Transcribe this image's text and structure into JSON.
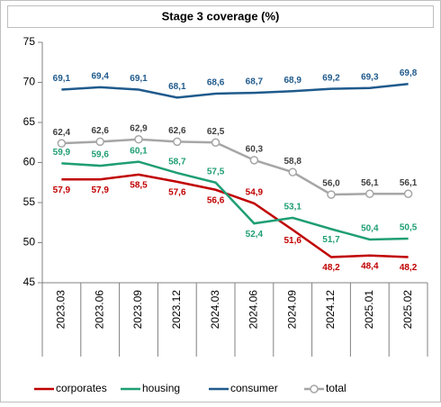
{
  "chart_data": {
    "type": "line",
    "title": "Stage 3 coverage (%)",
    "categories": [
      "2023.03",
      "2023.06",
      "2023.09",
      "2023.12",
      "2024.03",
      "2024.06",
      "2024.09",
      "2024.12",
      "2025.01",
      "2025.02"
    ],
    "ylim": [
      45,
      75
    ],
    "yticks": [
      45,
      50,
      55,
      60,
      65,
      70,
      75
    ],
    "legend": "bottom",
    "series": [
      {
        "name": "corporates",
        "color": "#c00000",
        "values": [
          57.9,
          57.9,
          58.5,
          57.6,
          56.6,
          54.9,
          51.6,
          48.2,
          48.4,
          48.2
        ],
        "value_labels": [
          "57,9",
          "57,9",
          "58,5",
          "57,6",
          "56,6",
          "54,9",
          "51,6",
          "48,2",
          "48,4",
          "48,2"
        ]
      },
      {
        "name": "housing",
        "color": "#1f9e74",
        "values": [
          59.9,
          59.6,
          60.1,
          58.7,
          57.5,
          52.4,
          53.1,
          51.7,
          50.4,
          50.5
        ],
        "value_labels": [
          "59,9",
          "59,6",
          "60,1",
          "58,7",
          "57,5",
          "52,4",
          "53,1",
          "51,7",
          "50,4",
          "50,5"
        ]
      },
      {
        "name": "consumer",
        "color": "#1f5a8c",
        "values": [
          69.1,
          69.4,
          69.1,
          68.1,
          68.6,
          68.7,
          68.9,
          69.2,
          69.3,
          69.8
        ],
        "value_labels": [
          "69,1",
          "69,4",
          "69,1",
          "68,1",
          "68,6",
          "68,7",
          "68,9",
          "69,2",
          "69,3",
          "69,8"
        ]
      },
      {
        "name": "total",
        "color": "#a6a6a6",
        "marker": "circle",
        "values": [
          62.4,
          62.6,
          62.9,
          62.6,
          62.5,
          60.3,
          58.8,
          56.0,
          56.1,
          56.1
        ],
        "value_labels": [
          "62,4",
          "62,6",
          "62,9",
          "62,6",
          "62,5",
          "60,3",
          "58,8",
          "56,0",
          "56,1",
          "56,1"
        ]
      }
    ]
  }
}
